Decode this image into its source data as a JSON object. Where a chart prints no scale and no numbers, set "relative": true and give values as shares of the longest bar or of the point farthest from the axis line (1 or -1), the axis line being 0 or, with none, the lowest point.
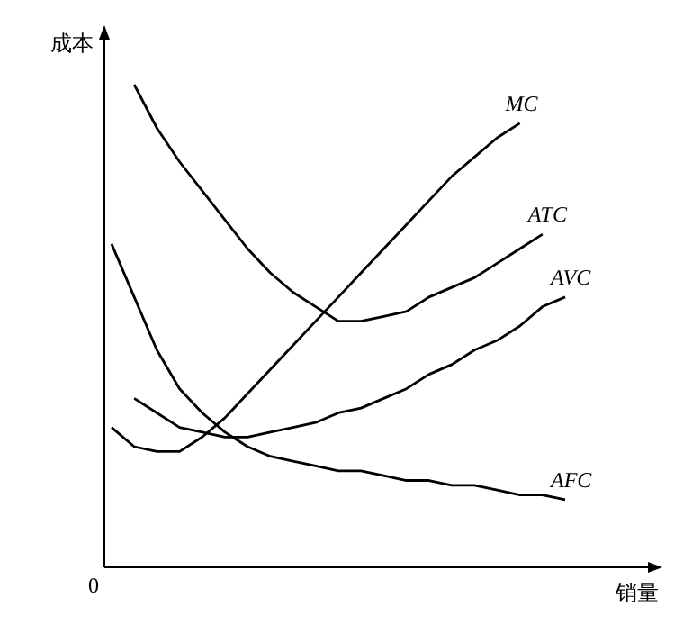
{
  "chart_data": {
    "type": "line",
    "relative": true,
    "xlabel": "销量",
    "ylabel": "成本",
    "annotations": [
      "0"
    ],
    "legend": false,
    "marker": "none",
    "line_style": "solid",
    "categories": [
      null,
      null,
      null,
      null,
      null,
      null,
      null,
      null,
      null,
      null,
      null,
      null,
      null,
      null,
      null,
      null,
      null,
      null,
      null,
      null,
      null
    ],
    "series": [
      {
        "name": "MC",
        "color": "#000000",
        "values": [
          0.29,
          0.25,
          0.24,
          0.24,
          0.27,
          0.31,
          0.36,
          0.41,
          0.46,
          0.51,
          0.56,
          0.61,
          0.66,
          0.71,
          0.76,
          0.81,
          0.85,
          0.89,
          0.92,
          null,
          null
        ]
      },
      {
        "name": "ATC",
        "color": "#000000",
        "values": [
          null,
          1,
          0.91,
          0.84,
          0.78,
          0.72,
          0.66,
          0.61,
          0.57,
          0.54,
          0.51,
          0.51,
          0.52,
          0.53,
          0.56,
          0.58,
          0.6,
          0.63,
          0.66,
          0.69,
          null
        ]
      },
      {
        "name": "AVC",
        "color": "#000000",
        "values": [
          null,
          0.35,
          0.32,
          0.29,
          0.28,
          0.27,
          0.27,
          0.28,
          0.29,
          0.3,
          0.32,
          0.33,
          0.35,
          0.37,
          0.4,
          0.42,
          0.45,
          0.47,
          0.5,
          0.54,
          0.56
        ]
      },
      {
        "name": "AFC",
        "color": "#000000",
        "values": [
          0.67,
          0.56,
          0.45,
          0.37,
          0.32,
          0.28,
          0.25,
          0.23,
          0.22,
          0.21,
          0.2,
          0.2,
          0.19,
          0.18,
          0.18,
          0.17,
          0.17,
          0.16,
          0.15,
          0.15,
          0.14
        ]
      }
    ]
  }
}
